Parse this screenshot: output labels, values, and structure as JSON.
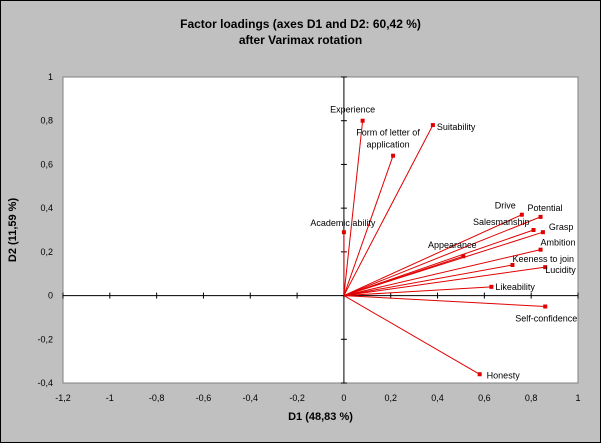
{
  "chart_data": {
    "type": "scatter",
    "title": "Factor loadings (axes D1 and D2: 60,42 %)",
    "subtitle": "after Varimax rotation",
    "xlabel": "D1 (48,83 %)",
    "ylabel": "D2 (11,59 %)",
    "xlim": [
      -1.2,
      1
    ],
    "ylim": [
      -0.4,
      1
    ],
    "x_ticks": [
      -1.2,
      -1,
      -0.8,
      -0.6,
      -0.4,
      -0.2,
      0,
      0.2,
      0.4,
      0.6,
      0.8,
      1
    ],
    "y_ticks": [
      -0.4,
      -0.2,
      0,
      0.2,
      0.4,
      0.6,
      0.8,
      1
    ],
    "x_tick_labels": [
      "-1,2",
      "-1",
      "-0,8",
      "-0,6",
      "-0,4",
      "-0,2",
      "0",
      "0,2",
      "0,4",
      "0,6",
      "0,8",
      "1"
    ],
    "y_tick_labels": [
      "-0,4",
      "-0,2",
      "0",
      "0,2",
      "0,4",
      "0,6",
      "0,8",
      "1"
    ],
    "grid": false,
    "vectors_from_origin": true,
    "point_color": "#e00000",
    "points": [
      {
        "label": "Experience",
        "x": 0.08,
        "y": 0.8
      },
      {
        "label": "Suitability",
        "x": 0.38,
        "y": 0.78
      },
      {
        "label": "Form of letter of application",
        "x": 0.21,
        "y": 0.64
      },
      {
        "label": "Academic ability",
        "x": 0.0,
        "y": 0.29
      },
      {
        "label": "Drive",
        "x": 0.76,
        "y": 0.37
      },
      {
        "label": "Potential",
        "x": 0.84,
        "y": 0.36
      },
      {
        "label": "Salesmanship",
        "x": 0.81,
        "y": 0.3
      },
      {
        "label": "Grasp",
        "x": 0.85,
        "y": 0.29
      },
      {
        "label": "Ambition",
        "x": 0.84,
        "y": 0.21
      },
      {
        "label": "Appearance",
        "x": 0.51,
        "y": 0.18
      },
      {
        "label": "Keeness to join",
        "x": 0.72,
        "y": 0.14
      },
      {
        "label": "Lucidity",
        "x": 0.86,
        "y": 0.13
      },
      {
        "label": "Likeability",
        "x": 0.63,
        "y": 0.04
      },
      {
        "label": "Self-confidence",
        "x": 0.86,
        "y": -0.05
      },
      {
        "label": "Honesty",
        "x": 0.58,
        "y": -0.36
      }
    ]
  }
}
